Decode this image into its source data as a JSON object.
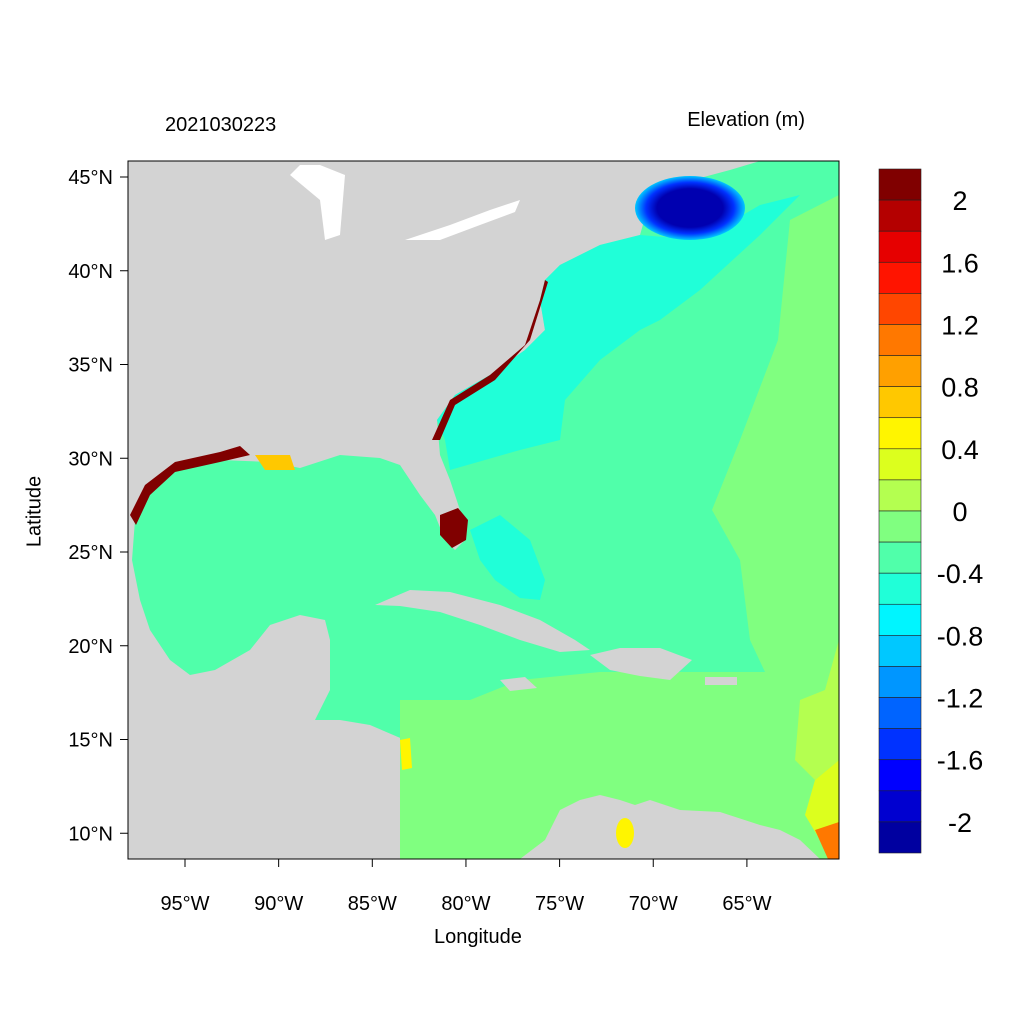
{
  "chart_data": {
    "type": "heatmap",
    "title_left": "2021030223",
    "title_right": "Elevation (m)",
    "xlabel": "Longitude",
    "ylabel": "Latitude",
    "xlim_deg_east": [
      -98.0,
      -60.1
    ],
    "ylim_deg_north": [
      8.6,
      45.85
    ],
    "x_ticks": [
      {
        "value": -95,
        "label": "95°W"
      },
      {
        "value": -90,
        "label": "90°W"
      },
      {
        "value": -85,
        "label": "85°W"
      },
      {
        "value": -80,
        "label": "80°W"
      },
      {
        "value": -75,
        "label": "75°W"
      },
      {
        "value": -70,
        "label": "70°W"
      },
      {
        "value": -65,
        "label": "65°W"
      }
    ],
    "y_ticks": [
      {
        "value": 45,
        "label": "45°N"
      },
      {
        "value": 40,
        "label": "40°N"
      },
      {
        "value": 35,
        "label": "35°N"
      },
      {
        "value": 30,
        "label": "30°N"
      },
      {
        "value": 25,
        "label": "25°N"
      },
      {
        "value": 20,
        "label": "20°N"
      },
      {
        "value": 15,
        "label": "15°N"
      },
      {
        "value": 10,
        "label": "10°N"
      }
    ],
    "colorbar": {
      "colors_top_to_bottom": [
        "#800000",
        "#b40000",
        "#e60000",
        "#ff1400",
        "#ff4600",
        "#ff7800",
        "#ffa000",
        "#ffc800",
        "#fff500",
        "#dcff1e",
        "#b4ff50",
        "#80ff80",
        "#50ffaa",
        "#20ffd8",
        "#00f5ff",
        "#00c8ff",
        "#0096ff",
        "#0064ff",
        "#0032ff",
        "#0000ff",
        "#0000d0",
        "#0000a0"
      ],
      "labels": [
        "2",
        "1.6",
        "1.2",
        "0.8",
        "0.4",
        "0",
        "-0.4",
        "-0.8",
        "-1.2",
        "-1.6",
        "-2"
      ]
    },
    "land_color": "#d3d3d3"
  }
}
